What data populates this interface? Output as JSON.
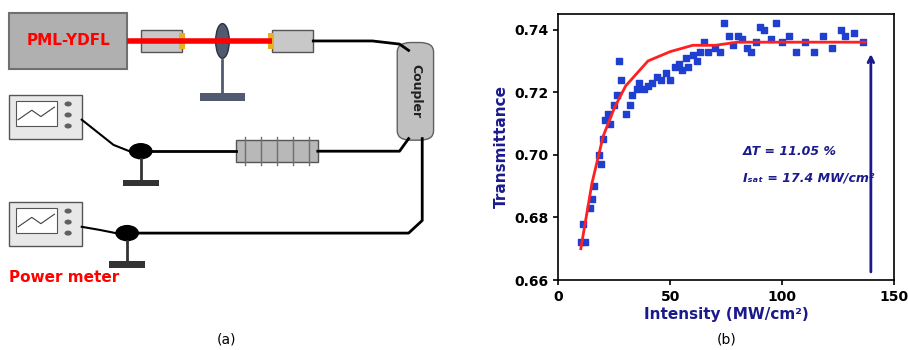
{
  "diagram": {
    "caption": "(a)",
    "nodes": [
      {
        "label": "PML-YDFL"
      },
      {
        "label": "Coupler"
      },
      {
        "label": "Power meter"
      }
    ]
  },
  "chart_data": {
    "type": "scatter",
    "title": "(b)",
    "x_label": "Intensity (MW/cm²)",
    "y_label": "Transmittance",
    "annotations": [
      "ΔT = 11.05 %",
      "Iₛₐₜ = 17.4 MW/cm²"
    ],
    "xlim": [
      0,
      150
    ],
    "xticks": [
      0,
      50,
      100,
      150
    ],
    "ylim": [
      0.66,
      0.745
    ],
    "yticks": [
      0.66,
      0.68,
      {
        "value": 0.7,
        "label": "0.70"
      },
      0.72,
      0.74
    ],
    "grid": false,
    "series": [
      {
        "type": "scatter",
        "color": "#1f3fd0",
        "marker": "square",
        "x": [
          10,
          11,
          12,
          14,
          15,
          16,
          18,
          19,
          20,
          21,
          22,
          23,
          25,
          26,
          27,
          28,
          30,
          32,
          33,
          35,
          36,
          38,
          40,
          42,
          44,
          46,
          48,
          50,
          52,
          54,
          55,
          57,
          58,
          60,
          62,
          63,
          65,
          67,
          70,
          72,
          74,
          76,
          78,
          80,
          82,
          84,
          86,
          88,
          90,
          92,
          95,
          97,
          100,
          103,
          106,
          110,
          114,
          118,
          122,
          126,
          128,
          132,
          136
        ],
        "values": [
          0.672,
          0.678,
          0.672,
          0.683,
          0.686,
          0.69,
          0.7,
          0.697,
          0.705,
          0.711,
          0.713,
          0.71,
          0.716,
          0.719,
          0.73,
          0.724,
          0.713,
          0.716,
          0.719,
          0.721,
          0.723,
          0.721,
          0.722,
          0.723,
          0.725,
          0.724,
          0.726,
          0.724,
          0.728,
          0.729,
          0.727,
          0.731,
          0.728,
          0.732,
          0.73,
          0.733,
          0.736,
          0.733,
          0.734,
          0.733,
          0.742,
          0.738,
          0.735,
          0.738,
          0.737,
          0.734,
          0.733,
          0.736,
          0.741,
          0.74,
          0.737,
          0.742,
          0.736,
          0.738,
          0.733,
          0.736,
          0.733,
          0.738,
          0.734,
          0.74,
          0.738,
          0.739,
          0.736
        ]
      },
      {
        "type": "line",
        "color": "#ff2020",
        "line_style": "solid",
        "x": [
          10,
          15,
          20,
          25,
          30,
          40,
          50,
          60,
          70,
          80,
          100,
          120,
          137
        ],
        "values": [
          0.67,
          0.691,
          0.706,
          0.715,
          0.722,
          0.73,
          0.733,
          0.735,
          0.735,
          0.736,
          0.736,
          0.736,
          0.736
        ]
      }
    ]
  }
}
